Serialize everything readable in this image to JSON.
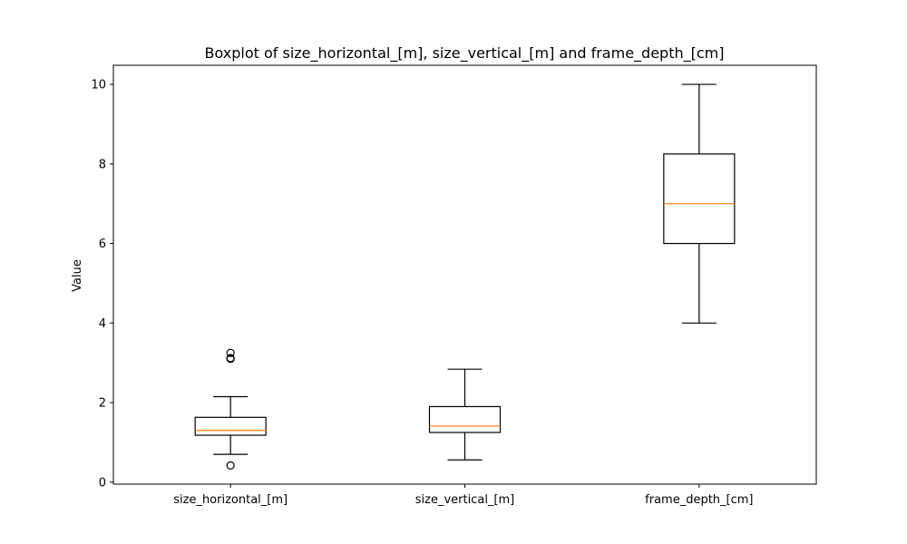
{
  "chart_data": {
    "type": "box",
    "title": "Boxplot of size_horizontal_[m], size_vertical_[m] and frame_depth_[cm]",
    "xlabel": "",
    "ylabel": "Value",
    "ylim": [
      -0.05,
      10.48
    ],
    "yticks": [
      "0",
      "2",
      "4",
      "6",
      "8",
      "10"
    ],
    "grid": false,
    "colors": {
      "box": "#000000",
      "median": "#ff7f0e"
    },
    "categories": [
      "size_horizontal_[m]",
      "size_vertical_[m]",
      "frame_depth_[cm]"
    ],
    "boxes": [
      {
        "whisker_low": 0.7,
        "q1": 1.18,
        "median": 1.3,
        "q3": 1.63,
        "whisker_high": 2.15,
        "outliers": [
          0.42,
          3.1,
          3.12,
          3.25
        ]
      },
      {
        "whisker_low": 0.56,
        "q1": 1.25,
        "median": 1.41,
        "q3": 1.9,
        "whisker_high": 2.84,
        "outliers": []
      },
      {
        "whisker_low": 4.0,
        "q1": 6.0,
        "median": 7.0,
        "q3": 8.25,
        "whisker_high": 10.0,
        "outliers": []
      }
    ]
  }
}
